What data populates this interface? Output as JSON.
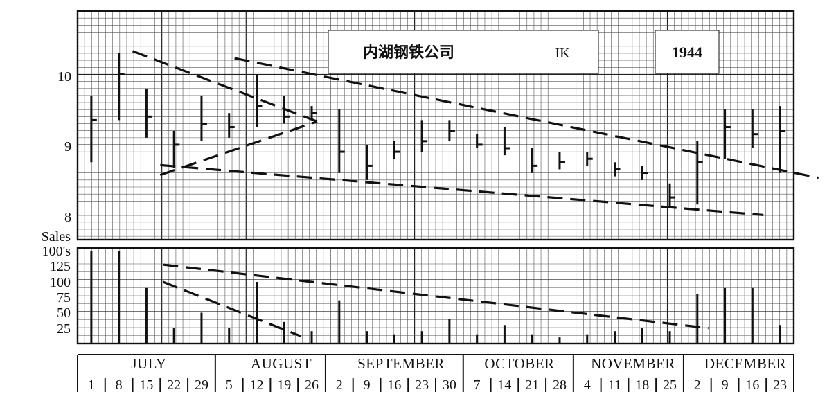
{
  "chart_data": {
    "type": "bar",
    "style": "OHLC high-low-close price bars with volume histogram",
    "header": {
      "company": "内湖钢铁公司",
      "symbol": "IK",
      "year": "1944"
    },
    "price_axis": {
      "ticks": [
        {
          "value": 10,
          "label": "10"
        },
        {
          "value": 9,
          "label": "9"
        },
        {
          "value": 8,
          "label": "8"
        }
      ],
      "ylim": [
        7.7,
        10.95
      ]
    },
    "volume_axis": {
      "title_lines": [
        "Sales",
        "100's"
      ],
      "ticks": [
        {
          "value": 125,
          "label": "125"
        },
        {
          "value": 100,
          "label": "100"
        },
        {
          "value": 75,
          "label": "75"
        },
        {
          "value": 50,
          "label": "50"
        },
        {
          "value": 25,
          "label": "25"
        }
      ],
      "ylim": [
        0,
        155
      ]
    },
    "months": [
      "JULY",
      "AUGUST",
      "SEPTEMBER",
      "OCTOBER",
      "NOVEMBER",
      "DECEMBER"
    ],
    "weeks": [
      "1",
      "8",
      "15",
      "22",
      "29",
      "5",
      "12",
      "19",
      "26",
      "2",
      "9",
      "16",
      "23",
      "30",
      "7",
      "14",
      "21",
      "28",
      "4",
      "11",
      "18",
      "25",
      "2",
      "9",
      "16",
      "23"
    ],
    "week_month_index": [
      0,
      0,
      0,
      0,
      0,
      1,
      1,
      1,
      1,
      2,
      2,
      2,
      2,
      2,
      3,
      3,
      3,
      3,
      4,
      4,
      4,
      4,
      5,
      5,
      5,
      5
    ],
    "weekly_price": [
      {
        "week": "1",
        "high": 9.75,
        "low": 8.8,
        "close": 9.4
      },
      {
        "week": "8",
        "high": 10.35,
        "low": 9.4,
        "close": 10.05
      },
      {
        "week": "15",
        "high": 9.85,
        "low": 9.15,
        "close": 9.45
      },
      {
        "week": "22",
        "high": 9.25,
        "low": 8.72,
        "close": 9.05
      },
      {
        "week": "29",
        "high": 9.75,
        "low": 9.1,
        "close": 9.35
      },
      {
        "week": "5",
        "high": 9.5,
        "low": 9.15,
        "close": 9.3
      },
      {
        "week": "12",
        "high": 10.05,
        "low": 9.3,
        "close": 9.6
      },
      {
        "week": "19",
        "high": 9.75,
        "low": 9.35,
        "close": 9.45
      },
      {
        "week": "26",
        "high": 9.6,
        "low": 9.4,
        "close": 9.5
      },
      {
        "week": "2",
        "high": 9.55,
        "low": 8.65,
        "close": 8.95
      },
      {
        "week": "9",
        "high": 9.05,
        "low": 8.55,
        "close": 8.75
      },
      {
        "week": "16",
        "high": 9.1,
        "low": 8.85,
        "close": 8.95
      },
      {
        "week": "23",
        "high": 9.4,
        "low": 8.95,
        "close": 9.1
      },
      {
        "week": "30",
        "high": 9.4,
        "low": 9.1,
        "close": 9.25
      },
      {
        "week": "7",
        "high": 9.2,
        "low": 9.0,
        "close": 9.05
      },
      {
        "week": "14",
        "high": 9.3,
        "low": 8.9,
        "close": 9.0
      },
      {
        "week": "21",
        "high": 9.0,
        "low": 8.65,
        "close": 8.75
      },
      {
        "week": "28",
        "high": 8.95,
        "low": 8.7,
        "close": 8.8
      },
      {
        "week": "4",
        "high": 8.95,
        "low": 8.75,
        "close": 8.85
      },
      {
        "week": "11",
        "high": 8.8,
        "low": 8.6,
        "close": 8.7
      },
      {
        "week": "18",
        "high": 8.75,
        "low": 8.55,
        "close": 8.65
      },
      {
        "week": "25",
        "high": 8.5,
        "low": 8.15,
        "close": 8.3
      },
      {
        "week": "2",
        "high": 9.1,
        "low": 8.2,
        "close": 8.8
      },
      {
        "week": "9",
        "high": 9.55,
        "low": 8.85,
        "close": 9.3
      },
      {
        "week": "16",
        "high": 9.55,
        "low": 9.0,
        "close": 9.2
      },
      {
        "week": "23",
        "high": 9.6,
        "low": 8.65,
        "close": 9.25
      }
    ],
    "weekly_volume": [
      {
        "week": "1",
        "value": 150
      },
      {
        "week": "8",
        "value": 150
      },
      {
        "week": "15",
        "value": 90
      },
      {
        "week": "22",
        "value": 25
      },
      {
        "week": "29",
        "value": 50
      },
      {
        "week": "5",
        "value": 25
      },
      {
        "week": "12",
        "value": 100
      },
      {
        "week": "19",
        "value": 35
      },
      {
        "week": "26",
        "value": 20
      },
      {
        "week": "2",
        "value": 70
      },
      {
        "week": "9",
        "value": 20
      },
      {
        "week": "16",
        "value": 15
      },
      {
        "week": "23",
        "value": 20
      },
      {
        "week": "30",
        "value": 40
      },
      {
        "week": "7",
        "value": 15
      },
      {
        "week": "14",
        "value": 30
      },
      {
        "week": "21",
        "value": 15
      },
      {
        "week": "28",
        "value": 10
      },
      {
        "week": "4",
        "value": 15
      },
      {
        "week": "11",
        "value": 20
      },
      {
        "week": "18",
        "value": 25
      },
      {
        "week": "25",
        "value": 20
      },
      {
        "week": "2",
        "value": 80
      },
      {
        "week": "9",
        "value": 90
      },
      {
        "week": "16",
        "value": 90
      },
      {
        "week": "23",
        "value": 30
      }
    ],
    "price_trendlines": [
      {
        "from": [
          1.5,
          10.38
        ],
        "to": [
          8.2,
          9.38
        ]
      },
      {
        "from": [
          2.5,
          8.62
        ],
        "to": [
          8.2,
          9.38
        ]
      },
      {
        "from": [
          5.2,
          10.28
        ],
        "to": [
          26.4,
          8.58
        ]
      },
      {
        "from": [
          2.5,
          8.76
        ],
        "to": [
          24.4,
          8.05
        ]
      }
    ],
    "volume_trendlines": [
      {
        "from": [
          2.6,
          128
        ],
        "to": [
          22.4,
          25
        ]
      },
      {
        "from": [
          2.6,
          100
        ],
        "to": [
          7.6,
          12
        ]
      }
    ],
    "grid": true
  }
}
